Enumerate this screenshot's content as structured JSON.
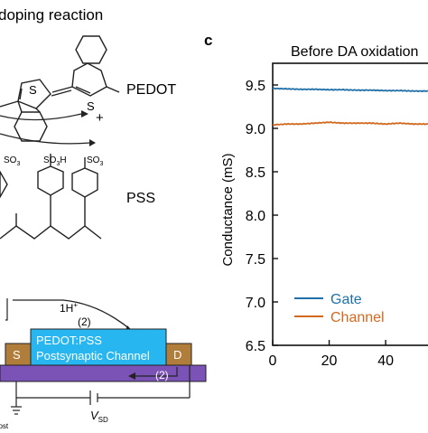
{
  "left_panel": {
    "top_heading": "doping reaction",
    "pedot_label": "PEDOT",
    "pss_label": "PSS",
    "sulfur": "S",
    "plus": "+",
    "so3_minus": "SO",
    "so3_sub": "3",
    "so3h": "SO",
    "so3h_sub": "3",
    "so3h_h": "H"
  },
  "device": {
    "proton_label": "1H",
    "proton_sup": "+",
    "step_top": "(2)",
    "step_bottom": "(2)",
    "channel_line1": "PEDOT:PSS",
    "channel_line2": "Postsynaptic Channel",
    "source": "S",
    "drain": "D",
    "vsd": "V",
    "vsd_sub": "SD",
    "vpost_sub": "post"
  },
  "panel_c": {
    "letter": "c",
    "colors": {
      "gate": "#1f6fa8",
      "channel": "#d2691e"
    }
  },
  "chart_data": {
    "type": "line",
    "title": "Before DA oxidation",
    "xlabel": "",
    "ylabel": "Conductance (mS)",
    "xlim": [
      0,
      55
    ],
    "ylim": [
      6.5,
      9.75
    ],
    "yticks": [
      6.5,
      7.0,
      7.5,
      8.0,
      8.5,
      9.0,
      9.5
    ],
    "ytick_labels": [
      "6.5",
      "7.0",
      "7.5",
      "8.0",
      "8.5",
      "9.0",
      "9.5"
    ],
    "xticks": [
      0,
      20,
      40
    ],
    "xtick_labels": [
      "0",
      "20",
      "40"
    ],
    "legend_position": "bottom-left",
    "series": [
      {
        "name": "Gate",
        "color": "#1f6fa8",
        "x": [
          0,
          5,
          10,
          15,
          20,
          25,
          30,
          35,
          40,
          45,
          50,
          55
        ],
        "y": [
          9.46,
          9.455,
          9.45,
          9.45,
          9.445,
          9.445,
          9.44,
          9.44,
          9.435,
          9.435,
          9.43,
          9.43
        ]
      },
      {
        "name": "Channel",
        "color": "#d2691e",
        "x": [
          0,
          5,
          10,
          15,
          20,
          25,
          30,
          35,
          40,
          45,
          50,
          55
        ],
        "y": [
          9.04,
          9.05,
          9.05,
          9.06,
          9.07,
          9.06,
          9.06,
          9.06,
          9.05,
          9.06,
          9.05,
          9.05
        ]
      }
    ]
  }
}
